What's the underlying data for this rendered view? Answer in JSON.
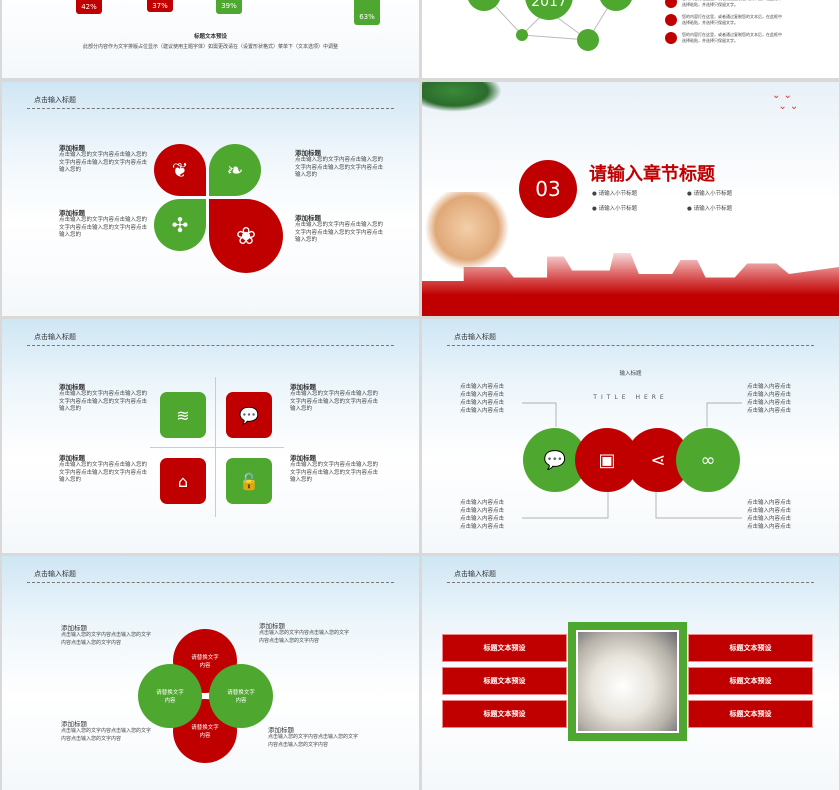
{
  "colors": {
    "red": "#c00000",
    "green": "#4ea72e"
  },
  "slide1": {
    "bars": [
      "42%",
      "37%",
      "39%",
      "63%"
    ],
    "title": "标题文本预设",
    "body": "此部分内容作为文字排版占位显示（建议使用主题字体）如需更改请在（设置形状格式）菜单下（文本选项）中调整"
  },
  "slide2": {
    "year": "2017",
    "items": [
      "您的内容打在这里，或者通过复制您的文本后，在此框中选择粘贴，并选择只保留文字。",
      "您的内容打在这里，或者通过复制您的文本后，在此框中选择粘贴，并选择只保留文字。",
      "您的内容打在这里，或者通过复制您的文本后，在此框中选择粘贴，并选择只保留文字。"
    ]
  },
  "slide3": {
    "header": "点击输入标题",
    "blocks": [
      {
        "title": "添加标题",
        "body": "点击输入您的文字内容点击输入您的文字内容点击输入您的文字内容点击输入您的"
      },
      {
        "title": "添加标题",
        "body": "点击输入您的文字内容点击输入您的文字内容点击输入您的文字内容点击输入您的"
      },
      {
        "title": "添加标题",
        "body": "点击输入您的文字内容点击输入您的文字内容点击输入您的文字内容点击输入您的"
      },
      {
        "title": "添加标题",
        "body": "点击输入您的文字内容点击输入您的文字内容点击输入您的文字内容点击输入您的"
      }
    ],
    "icons": [
      "leaf-icon",
      "sprout-icon",
      "flower-icon",
      "plant-icon"
    ]
  },
  "slide4": {
    "number": "03",
    "title": "请输入章节标题",
    "subs": [
      "请输入小节标题",
      "请输入小节标题",
      "请输入小节标题",
      "请输入小节标题"
    ]
  },
  "slide5": {
    "header": "点击输入标题",
    "blocks": [
      {
        "title": "添加标题",
        "body": "点击输入您的文字内容点击输入您的文字内容点击输入您的文字内容点击输入您的"
      },
      {
        "title": "添加标题",
        "body": "点击输入您的文字内容点击输入您的文字内容点击输入您的文字内容点击输入您的"
      },
      {
        "title": "添加标题",
        "body": "点击输入您的文字内容点击输入您的文字内容点击输入您的文字内容点击输入您的"
      },
      {
        "title": "添加标题",
        "body": "点击输入您的文字内容点击输入您的文字内容点击输入您的文字内容点击输入您的"
      }
    ],
    "icons": [
      "layers-icon",
      "chat-icon",
      "home-icon",
      "unlock-icon"
    ]
  },
  "slide6": {
    "header": "点击输入标题",
    "label": "输入标题",
    "title_here": "TITLE HERE",
    "line": "点击输入内容点击",
    "icons": [
      "chat-icon",
      "calendar-icon",
      "share-icon",
      "link-icon"
    ]
  },
  "slide7": {
    "header": "点击输入标题",
    "blocks": [
      {
        "title": "添加标题",
        "body": "点击输入您的文字内容点击输入您的文字内容点击输入您的文字内容"
      },
      {
        "title": "添加标题",
        "body": "点击输入您的文字内容点击输入您的文字内容点击输入您的文字内容"
      },
      {
        "title": "添加标题",
        "body": "点击输入您的文字内容点击输入您的文字内容点击输入您的文字内容"
      },
      {
        "title": "添加标题",
        "body": "点击输入您的文字内容点击输入您的文字内容点击输入您的文字内容"
      }
    ],
    "circle_text": "请替换文字内容"
  },
  "slide8": {
    "header": "点击输入标题",
    "bars": [
      "标题文本预设",
      "标题文本预设",
      "标题文本预设",
      "标题文本预设",
      "标题文本预设",
      "标题文本预设"
    ]
  }
}
